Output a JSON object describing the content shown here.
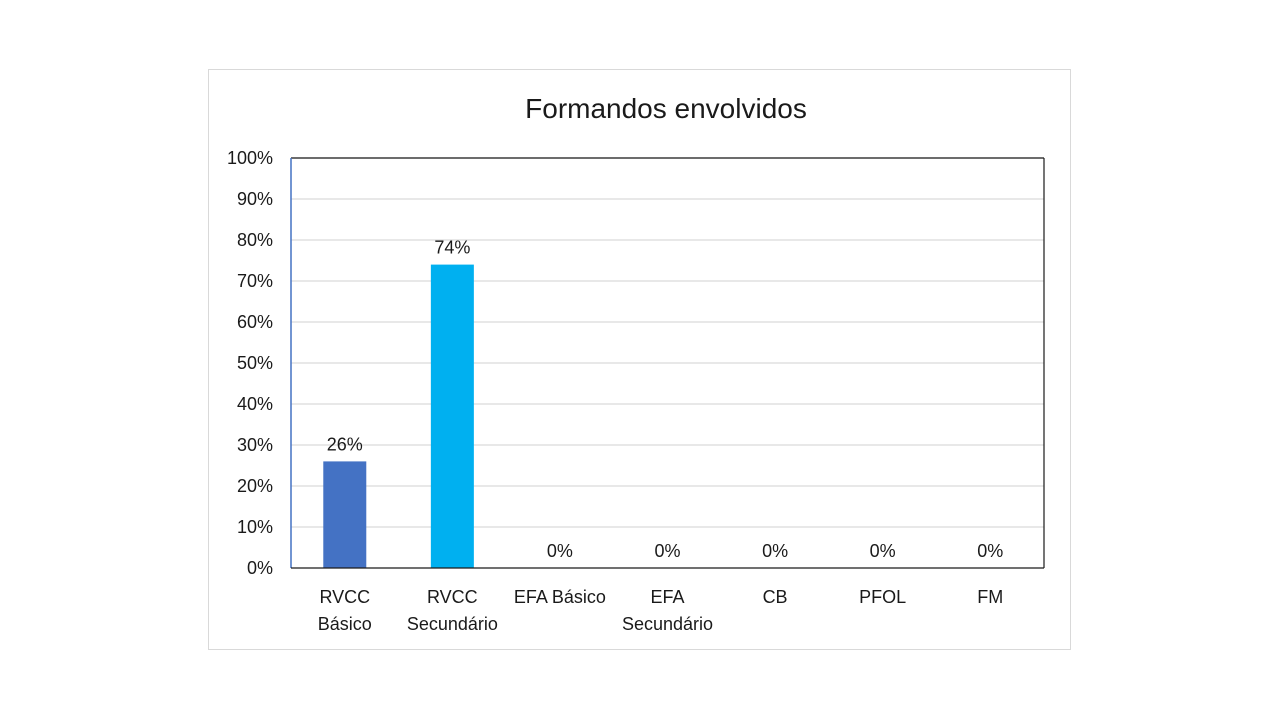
{
  "chart_data": {
    "type": "bar",
    "title": "Formandos envolvidos",
    "categories": [
      [
        "RVCC",
        "Básico"
      ],
      [
        "RVCC",
        "Secundário"
      ],
      [
        "EFA Básico"
      ],
      [
        "EFA",
        "Secundário"
      ],
      [
        "CB"
      ],
      [
        "PFOL"
      ],
      [
        "FM"
      ]
    ],
    "values": [
      26,
      74,
      0,
      0,
      0,
      0,
      0
    ],
    "data_labels": [
      "26%",
      "74%",
      "0%",
      "0%",
      "0%",
      "0%",
      "0%"
    ],
    "bar_colors": [
      "#4472c4",
      "#00b0f0",
      "#4472c4",
      "#4472c4",
      "#4472c4",
      "#4472c4",
      "#4472c4"
    ],
    "y_ticks": [
      "0%",
      "10%",
      "20%",
      "30%",
      "40%",
      "50%",
      "60%",
      "70%",
      "80%",
      "90%",
      "100%"
    ],
    "ylim": [
      0,
      100
    ],
    "grid": true,
    "legend": "none"
  }
}
